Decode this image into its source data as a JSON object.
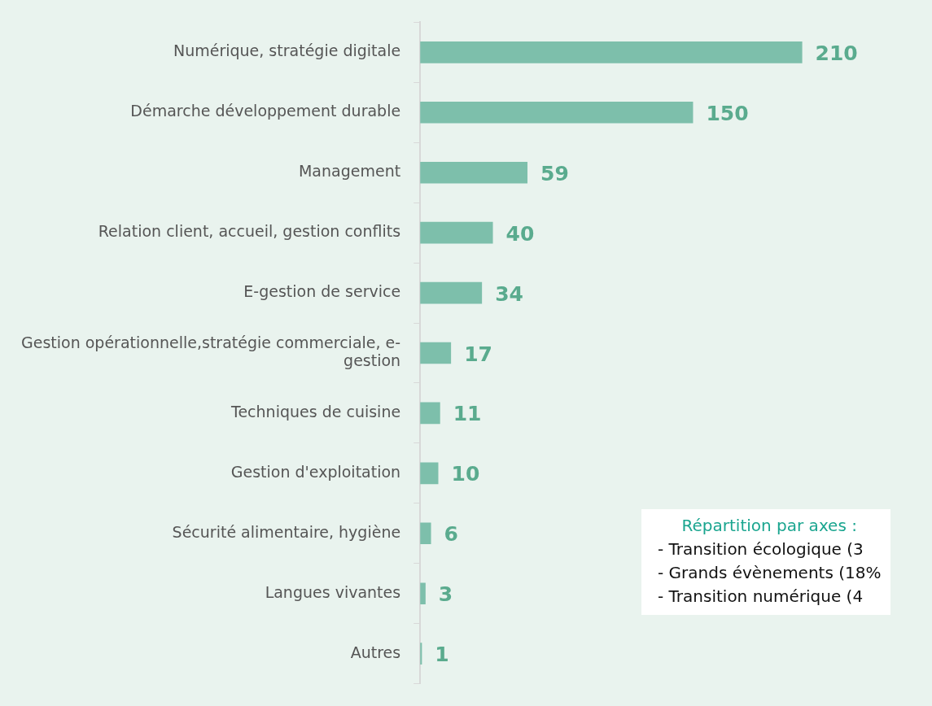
{
  "chart_data": {
    "type": "bar",
    "orientation": "horizontal",
    "categories": [
      "Numérique, stratégie digitale",
      "Démarche développement durable",
      "Management",
      "Relation client, accueil, gestion conflits",
      "E-gestion de service",
      "Gestion opérationnelle,stratégie commerciale, e-gestion",
      "Techniques de cuisine",
      "Gestion d'exploitation",
      "Sécurité alimentaire, hygiène",
      "Langues vivantes",
      "Autres"
    ],
    "values": [
      210,
      150,
      59,
      40,
      34,
      17,
      11,
      10,
      6,
      3,
      1
    ],
    "color": "#7dbfab",
    "data_labels": true,
    "legend": false,
    "annotations": [
      "Répartition par axes :",
      "- Transition écologique (3",
      "- Grands évènements (18%",
      "- Transition numérique (4"
    ]
  }
}
